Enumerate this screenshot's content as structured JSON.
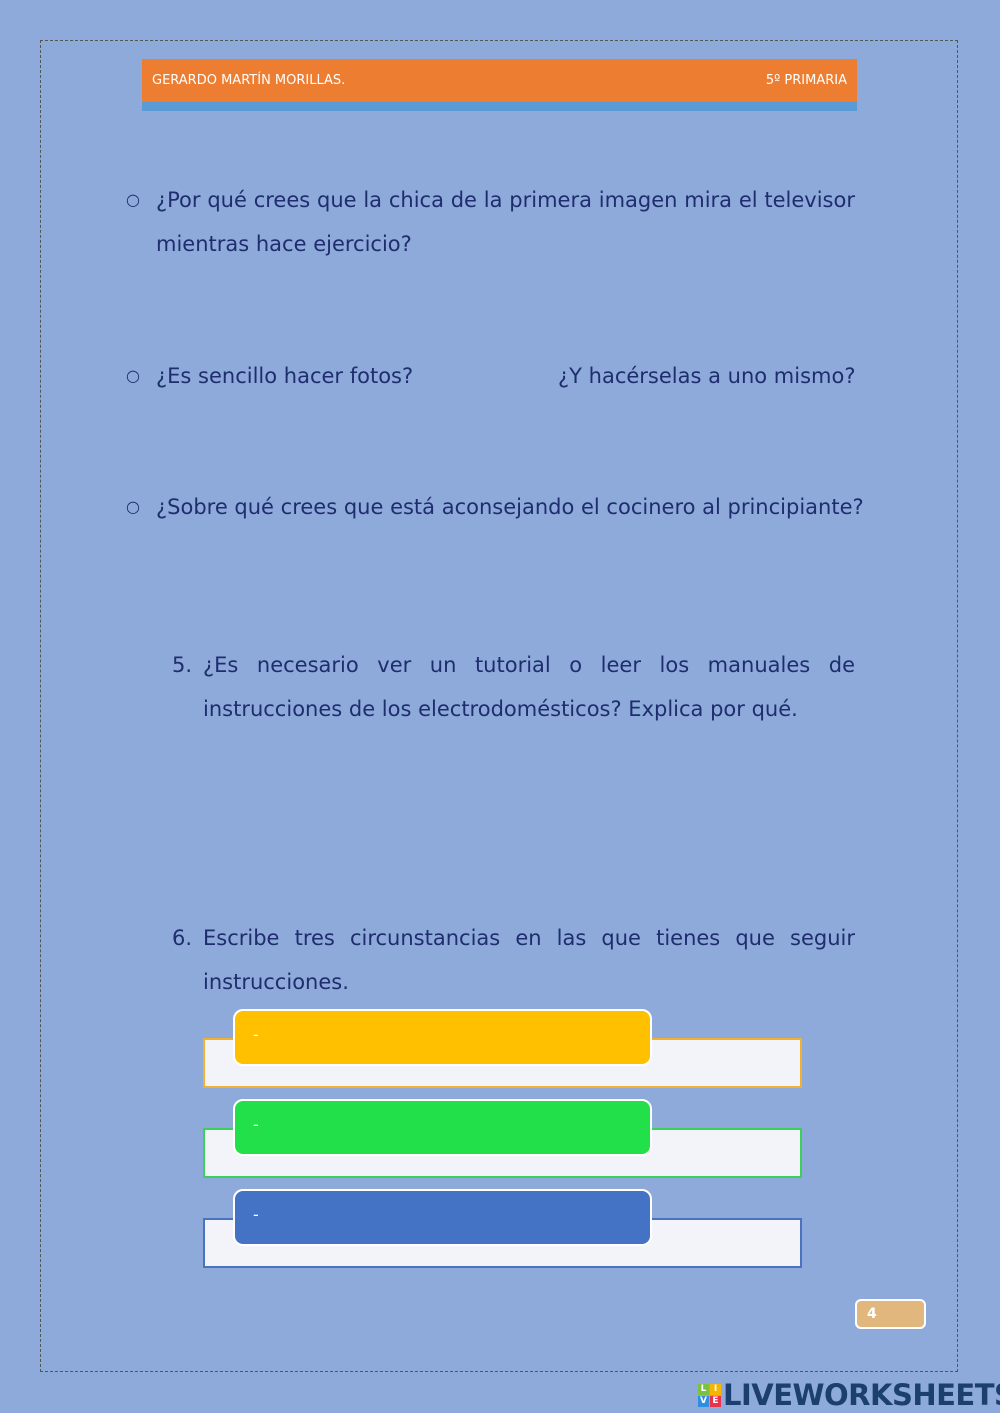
{
  "header": {
    "author": "GERARDO MARTÍN MORILLAS.",
    "grade": "5º PRIMARIA"
  },
  "questions": {
    "q1": "¿Por qué crees que la chica de la primera imagen mira el televisor mientras hace ejercicio?",
    "q2a": "¿Es sencillo hacer fotos?",
    "q2b": "¿Y hacérselas a uno mismo?",
    "q3": "¿Sobre qué crees que está aconsejando el cocinero al principiante?",
    "q5_num": "5.",
    "q5": "¿Es necesario ver un tutorial o leer los manuales de instrucciones de los electrodomésticos? Explica por qué.",
    "q6_num": "6.",
    "q6": "Escribe tres circunstancias en las que tienes que seguir instrucciones."
  },
  "bullet": "○",
  "answers": [
    {
      "label": "-",
      "color": "#ffc000"
    },
    {
      "label": "-",
      "color": "#22e04a"
    },
    {
      "label": "-",
      "color": "#4472c4"
    }
  ],
  "page_number": "4",
  "logo": {
    "letters": [
      "L",
      "I",
      "V",
      "E"
    ],
    "text": "LIVEWORKSHEETS"
  }
}
